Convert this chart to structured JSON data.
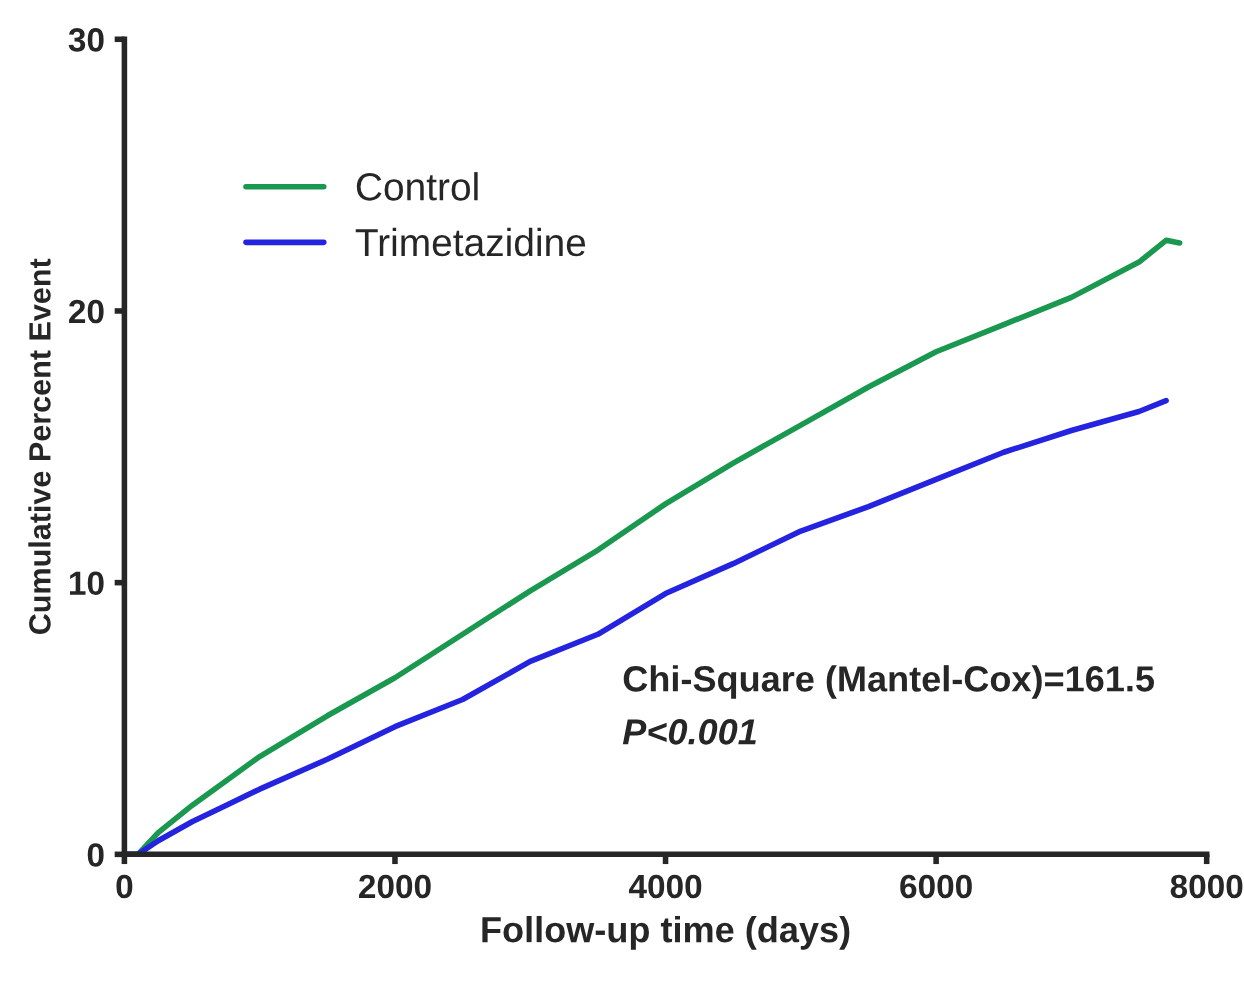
{
  "chart_data": {
    "type": "line",
    "xlabel": "Follow-up time (days)",
    "ylabel": "Cumulative Percent Event",
    "series": [
      {
        "name": "Control",
        "color": "#1a9850",
        "x": [
          0,
          100,
          250,
          500,
          750,
          1000,
          1500,
          2000,
          2500,
          3000,
          3500,
          4000,
          4500,
          5000,
          5500,
          6000,
          6500,
          7000,
          7500,
          7700,
          7800
        ],
        "values": [
          0,
          0,
          0.8,
          1.8,
          2.7,
          3.6,
          5.1,
          6.5,
          8.1,
          9.7,
          11.2,
          12.9,
          14.4,
          15.8,
          17.2,
          18.5,
          19.5,
          20.5,
          21.8,
          22.6,
          22.5
        ]
      },
      {
        "name": "Trimetazidine",
        "color": "#2323e0",
        "x": [
          0,
          100,
          250,
          500,
          750,
          1000,
          1500,
          2000,
          2500,
          3000,
          3500,
          4000,
          4500,
          5000,
          5500,
          6000,
          6500,
          7000,
          7500,
          7700
        ],
        "values": [
          0,
          0,
          0.5,
          1.2,
          1.8,
          2.4,
          3.5,
          4.7,
          5.7,
          7.1,
          8.1,
          9.6,
          10.7,
          11.9,
          12.8,
          13.8,
          14.8,
          15.6,
          16.3,
          16.7
        ]
      }
    ],
    "xlim": [
      0,
      8000
    ],
    "xticks": [
      0,
      2000,
      4000,
      6000,
      8000
    ],
    "ylim": [
      0,
      30
    ],
    "yticks": [
      0,
      10,
      20,
      30
    ],
    "grid": false,
    "legend": "top left",
    "marker": "none",
    "line_style": "solid",
    "annotations": [
      "Chi-Square (Mantel-Cox)=161.5",
      "P<0.001"
    ]
  }
}
